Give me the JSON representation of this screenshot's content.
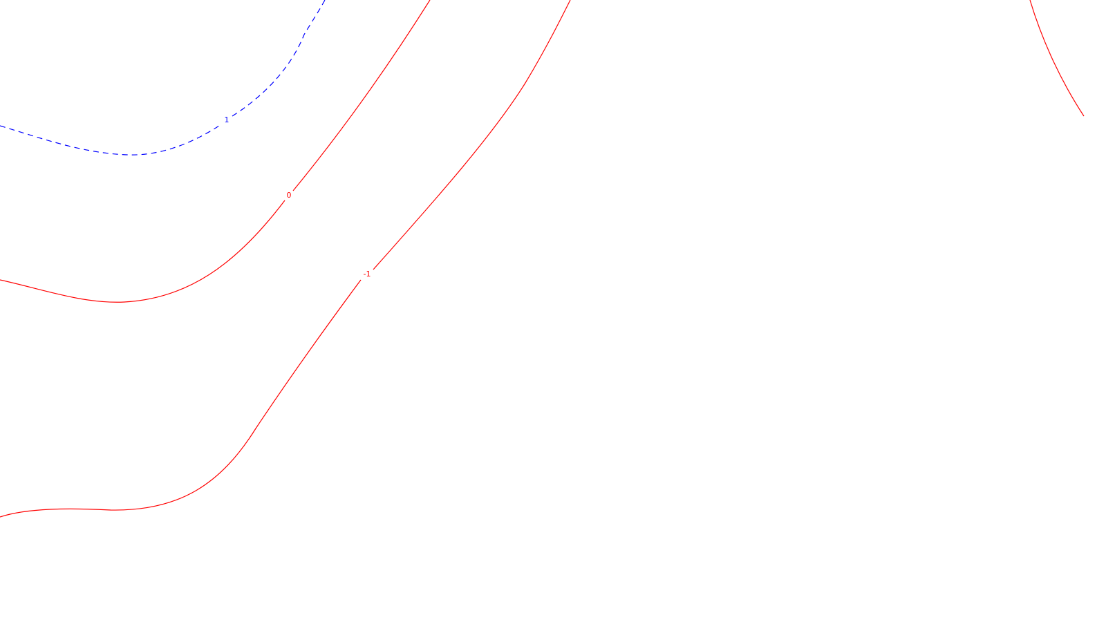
{
  "colors": {
    "background": "#ffffff",
    "negative_contour": "#ff0000",
    "positive_contour": "#0000ff"
  },
  "contours": [
    {
      "id": "contour-positive-1",
      "label": "1",
      "style": "dashed",
      "color": "#0000ff"
    },
    {
      "id": "contour-zero",
      "label": "0",
      "style": "solid",
      "color": "#ff0000"
    },
    {
      "id": "contour-negative-1",
      "label": "-1",
      "style": "solid",
      "color": "#ff0000"
    },
    {
      "id": "contour-edge-right",
      "label": "",
      "style": "solid",
      "color": "#ff0000"
    }
  ]
}
